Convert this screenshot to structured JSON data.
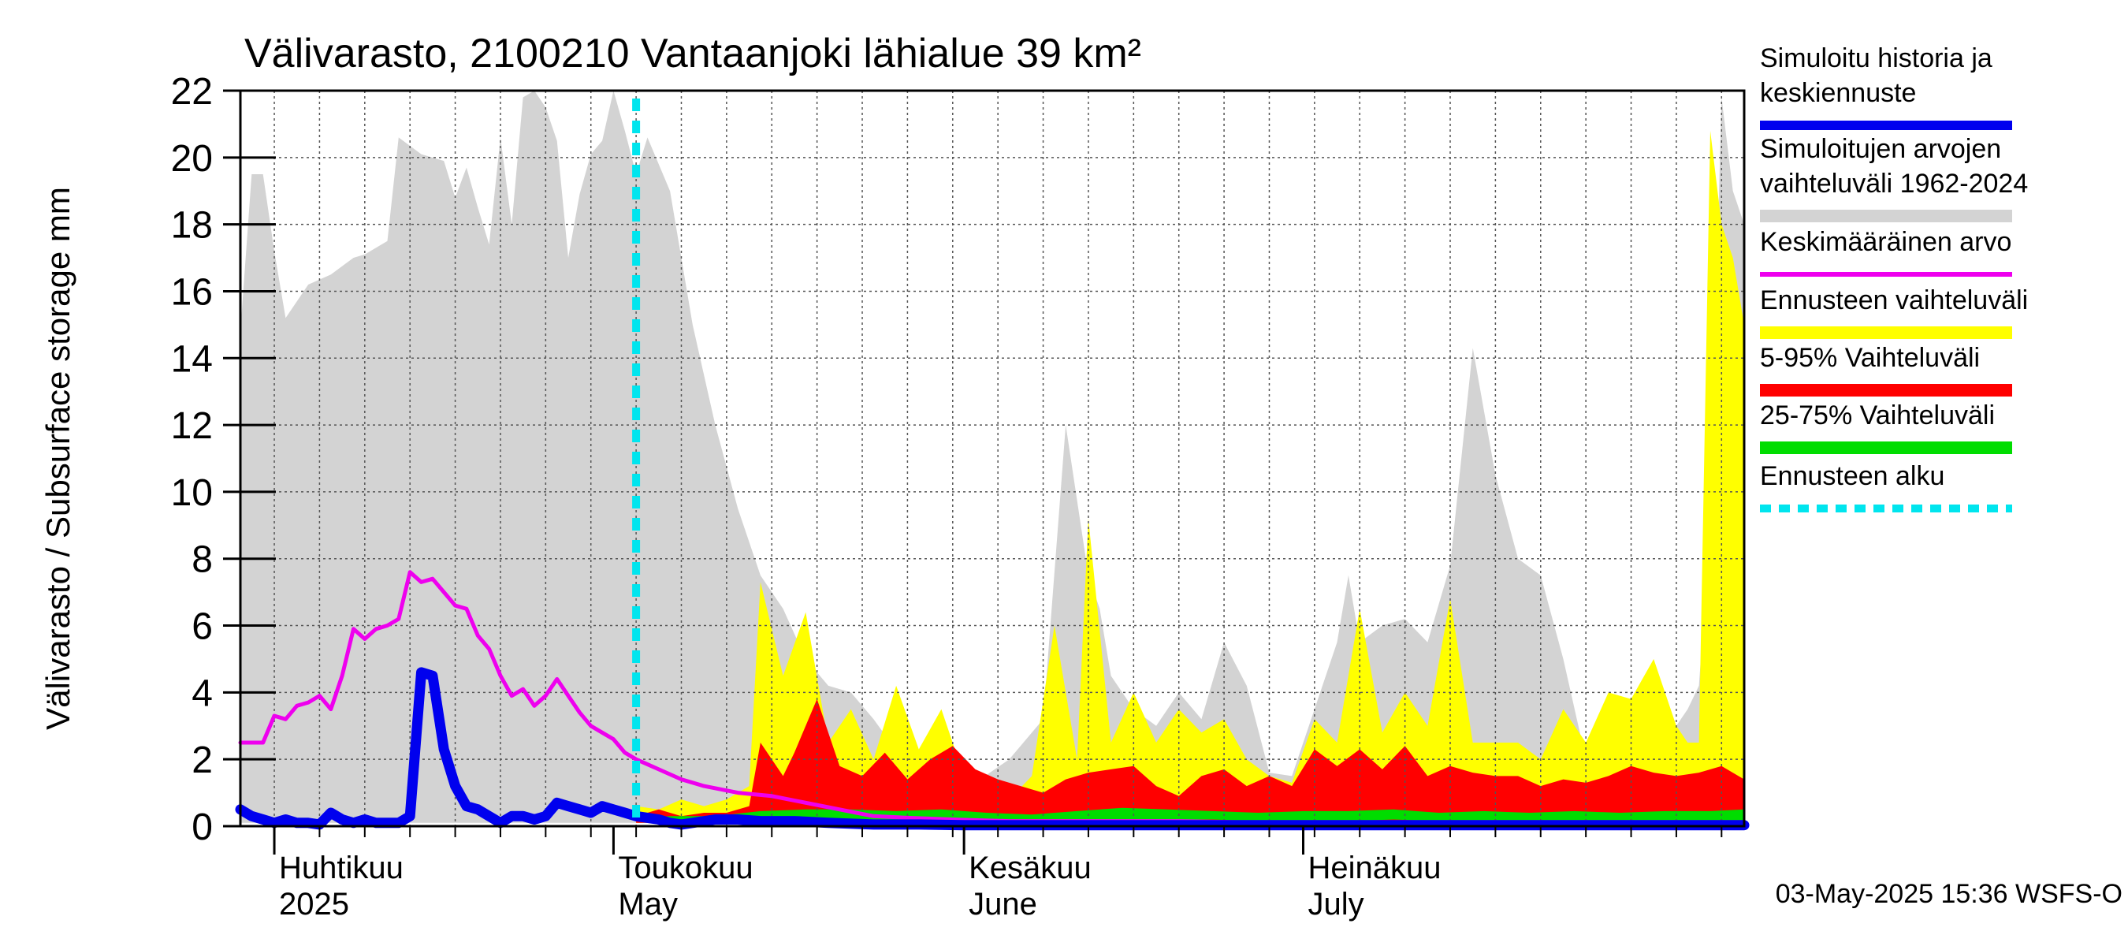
{
  "chart_data": {
    "type": "area",
    "title": "Välivarasto, 2100210 Vantaanjoki lähialue 39 km²",
    "ylabel": "Välivarasto / Subsurface storage  mm",
    "ylim": [
      0,
      22
    ],
    "yticks": [
      0,
      2,
      4,
      6,
      8,
      10,
      12,
      14,
      16,
      18,
      20,
      22
    ],
    "xlim": [
      "2025-03-29",
      "2025-08-09"
    ],
    "grid": true,
    "legend_position": "right",
    "timestamp": "03-May-2025 15:36 WSFS-O",
    "month_labels": [
      {
        "date": "2025-04-01",
        "fi": "Huhtikuu",
        "en": "2025"
      },
      {
        "date": "2025-05-01",
        "fi": "Toukokuu",
        "en": "May"
      },
      {
        "date": "2025-06-01",
        "fi": "Kesäkuu",
        "en": "June"
      },
      {
        "date": "2025-07-01",
        "fi": "Heinäkuu",
        "en": "July"
      }
    ],
    "forecast_start": "2025-05-03",
    "legend": [
      {
        "label": "Simuloitu historia ja keskiennuste",
        "color": "#0000ee",
        "style": "thick"
      },
      {
        "label": "Simuloitujen arvojen vaihteluväli 1962-2024",
        "color": "#d3d3d3",
        "style": "band"
      },
      {
        "label": "Keskimääräinen arvo",
        "color": "#ee00ee",
        "style": "line"
      },
      {
        "label": "Ennusteen vaihteluväli",
        "color": "#ffff00",
        "style": "band"
      },
      {
        "label": "5-95% Vaihteluväli",
        "color": "#ff0000",
        "style": "band"
      },
      {
        "label": "25-75% Vaihteluväli",
        "color": "#00dd00",
        "style": "band"
      },
      {
        "label": "Ennusteen alku",
        "color": "#00e5ee",
        "style": "dashed"
      }
    ],
    "series": [
      {
        "name": "Simuloitujen arvojen vaihteluväli 1962-2024",
        "kind": "band",
        "x": [
          "2025-03-29",
          "2025-03-30",
          "2025-03-31",
          "2025-04-01",
          "2025-04-02",
          "2025-04-04",
          "2025-04-06",
          "2025-04-08",
          "2025-04-09",
          "2025-04-11",
          "2025-04-12",
          "2025-04-14",
          "2025-04-16",
          "2025-04-17",
          "2025-04-18",
          "2025-04-19",
          "2025-04-20",
          "2025-04-21",
          "2025-04-22",
          "2025-04-23",
          "2025-04-24",
          "2025-04-25",
          "2025-04-26",
          "2025-04-27",
          "2025-04-28",
          "2025-04-29",
          "2025-04-30",
          "2025-05-01",
          "2025-05-02",
          "2025-05-03",
          "2025-05-04",
          "2025-05-06",
          "2025-05-08",
          "2025-05-10",
          "2025-05-12",
          "2025-05-14",
          "2025-05-16",
          "2025-05-18",
          "2025-05-20",
          "2025-05-22",
          "2025-05-24",
          "2025-05-27",
          "2025-05-30",
          "2025-06-02",
          "2025-06-05",
          "2025-06-08",
          "2025-06-10",
          "2025-06-12",
          "2025-06-13",
          "2025-06-14",
          "2025-06-16",
          "2025-06-18",
          "2025-06-20",
          "2025-06-22",
          "2025-06-24",
          "2025-06-26",
          "2025-06-28",
          "2025-06-30",
          "2025-07-02",
          "2025-07-04",
          "2025-07-05",
          "2025-07-06",
          "2025-07-08",
          "2025-07-10",
          "2025-07-12",
          "2025-07-14",
          "2025-07-16",
          "2025-07-18",
          "2025-07-20",
          "2025-07-22",
          "2025-07-24",
          "2025-07-26",
          "2025-07-28",
          "2025-07-30",
          "2025-08-01",
          "2025-08-03",
          "2025-08-04",
          "2025-08-05",
          "2025-08-06",
          "2025-08-07",
          "2025-08-08",
          "2025-08-09"
        ],
        "high": [
          14.8,
          19.5,
          19.5,
          17.2,
          15.2,
          16.2,
          16.5,
          17.0,
          17.1,
          17.5,
          20.6,
          20.1,
          19.9,
          18.8,
          19.7,
          18.5,
          17.4,
          20.6,
          18.0,
          21.8,
          22.0,
          21.5,
          20.5,
          17.0,
          18.9,
          20.1,
          20.5,
          22.0,
          20.8,
          19.5,
          20.6,
          19.0,
          15.0,
          12.0,
          9.5,
          7.5,
          6.5,
          5.0,
          4.2,
          4.0,
          3.2,
          1.8,
          1.3,
          1.3,
          2.0,
          3.2,
          12.0,
          7.5,
          6.5,
          4.5,
          3.5,
          3.0,
          4.0,
          3.2,
          5.5,
          4.2,
          1.6,
          1.5,
          3.5,
          5.5,
          7.5,
          5.5,
          6.0,
          6.2,
          5.5,
          7.8,
          14.3,
          10.5,
          8.0,
          7.5,
          5.0,
          2.0,
          2.0,
          3.5,
          4.0,
          3.0,
          3.5,
          4.2,
          9.0,
          21.8,
          19.0,
          18.0
        ],
        "low": [
          0.1,
          0.1,
          0.1,
          0.1,
          0.1,
          0.1,
          0.1,
          0.1,
          0.1,
          0.1,
          0.1,
          0.1,
          0.1,
          0.1,
          0.1,
          0.1,
          0.1,
          0.1,
          0.1,
          0.1,
          0.1,
          0.1,
          0.1,
          0.1,
          0.1,
          0.1,
          0.1,
          0.1,
          0.1,
          0.1,
          0.1,
          0.1,
          0.1,
          0.1,
          0.1,
          0.1,
          0.1,
          0.1,
          0.1,
          0.1,
          0.1,
          0.1,
          0.1,
          0.1,
          0.1,
          0.1,
          0.1,
          0.1,
          0.1,
          0.1,
          0.1,
          0.1,
          0.1,
          0.1,
          0.1,
          0.1,
          0.1,
          0.1,
          0.1,
          0.1,
          0.1,
          0.1,
          0.1,
          0.1,
          0.1,
          0.1,
          0.1,
          0.1,
          0.1,
          0.1,
          0.1,
          0.1,
          0.1,
          0.1,
          0.1,
          0.1,
          0.1,
          0.1,
          0.1,
          0.1,
          0.1,
          0.1
        ]
      },
      {
        "name": "Ennusteen vaihteluväli",
        "kind": "band",
        "x": [
          "2025-05-03",
          "2025-05-05",
          "2025-05-07",
          "2025-05-09",
          "2025-05-11",
          "2025-05-13",
          "2025-05-14",
          "2025-05-16",
          "2025-05-18",
          "2025-05-20",
          "2025-05-22",
          "2025-05-24",
          "2025-05-26",
          "2025-05-28",
          "2025-05-30",
          "2025-06-01",
          "2025-06-03",
          "2025-06-05",
          "2025-06-07",
          "2025-06-09",
          "2025-06-11",
          "2025-06-12",
          "2025-06-14",
          "2025-06-16",
          "2025-06-18",
          "2025-06-20",
          "2025-06-22",
          "2025-06-24",
          "2025-06-26",
          "2025-06-28",
          "2025-06-30",
          "2025-07-02",
          "2025-07-04",
          "2025-07-06",
          "2025-07-08",
          "2025-07-10",
          "2025-07-12",
          "2025-07-14",
          "2025-07-16",
          "2025-07-18",
          "2025-07-20",
          "2025-07-22",
          "2025-07-24",
          "2025-07-26",
          "2025-07-28",
          "2025-07-30",
          "2025-08-01",
          "2025-08-03",
          "2025-08-04",
          "2025-08-05",
          "2025-08-06",
          "2025-08-07",
          "2025-08-08",
          "2025-08-09"
        ],
        "high": [
          0.6,
          0.5,
          0.8,
          0.6,
          0.8,
          1.2,
          7.3,
          4.5,
          6.4,
          2.5,
          3.5,
          2.0,
          4.2,
          2.3,
          3.5,
          1.5,
          1.0,
          0.8,
          1.5,
          6.0,
          2.0,
          9.2,
          2.5,
          4.0,
          2.5,
          3.5,
          2.8,
          3.2,
          2.0,
          1.5,
          1.3,
          3.2,
          2.5,
          6.5,
          2.8,
          4.0,
          3.0,
          6.8,
          2.5,
          2.5,
          2.5,
          2.0,
          3.5,
          2.5,
          4.0,
          3.8,
          5.0,
          3.0,
          2.5,
          2.5,
          20.8,
          18.0,
          17.0,
          15.0
        ],
        "low": [
          0.1,
          0.1,
          0.1,
          0.1,
          0.1,
          0.1,
          0.1,
          0.1,
          0.1,
          0.1,
          0.1,
          0.1,
          0.1,
          0.1,
          0.1,
          0.1,
          0.1,
          0.1,
          0.1,
          0.1,
          0.1,
          0.1,
          0.1,
          0.1,
          0.1,
          0.1,
          0.1,
          0.1,
          0.1,
          0.1,
          0.1,
          0.1,
          0.1,
          0.1,
          0.1,
          0.1,
          0.1,
          0.1,
          0.1,
          0.1,
          0.1,
          0.1,
          0.1,
          0.1,
          0.1,
          0.1,
          0.1,
          0.1,
          0.1,
          0.1,
          0.1,
          0.1,
          0.1,
          0.1
        ]
      },
      {
        "name": "5-95% Vaihteluväli",
        "kind": "band",
        "x": [
          "2025-05-03",
          "2025-05-05",
          "2025-05-07",
          "2025-05-09",
          "2025-05-11",
          "2025-05-13",
          "2025-05-14",
          "2025-05-16",
          "2025-05-17",
          "2025-05-19",
          "2025-05-21",
          "2025-05-23",
          "2025-05-25",
          "2025-05-27",
          "2025-05-29",
          "2025-05-31",
          "2025-06-02",
          "2025-06-04",
          "2025-06-06",
          "2025-06-08",
          "2025-06-10",
          "2025-06-12",
          "2025-06-14",
          "2025-06-16",
          "2025-06-18",
          "2025-06-20",
          "2025-06-22",
          "2025-06-24",
          "2025-06-26",
          "2025-06-28",
          "2025-06-30",
          "2025-07-02",
          "2025-07-04",
          "2025-07-06",
          "2025-07-08",
          "2025-07-10",
          "2025-07-12",
          "2025-07-14",
          "2025-07-16",
          "2025-07-18",
          "2025-07-20",
          "2025-07-22",
          "2025-07-24",
          "2025-07-26",
          "2025-07-28",
          "2025-07-30",
          "2025-08-01",
          "2025-08-03",
          "2025-08-05",
          "2025-08-07",
          "2025-08-09"
        ],
        "high": [
          0.3,
          0.5,
          0.3,
          0.4,
          0.4,
          0.6,
          2.5,
          1.5,
          2.2,
          3.8,
          1.8,
          1.5,
          2.2,
          1.4,
          2.0,
          2.4,
          1.7,
          1.4,
          1.2,
          1.0,
          1.4,
          1.6,
          1.7,
          1.8,
          1.2,
          0.9,
          1.5,
          1.7,
          1.2,
          1.5,
          1.2,
          2.3,
          1.8,
          2.3,
          1.7,
          2.4,
          1.5,
          1.8,
          1.6,
          1.5,
          1.5,
          1.2,
          1.4,
          1.3,
          1.5,
          1.8,
          1.6,
          1.5,
          1.6,
          1.8,
          1.4
        ],
        "low": [
          0.1,
          0.1,
          0.1,
          0.1,
          0.1,
          0.1,
          0.1,
          0.1,
          0.1,
          0.1,
          0.1,
          0.1,
          0.1,
          0.1,
          0.1,
          0.1,
          0.1,
          0.1,
          0.1,
          0.1,
          0.1,
          0.1,
          0.1,
          0.1,
          0.1,
          0.1,
          0.1,
          0.1,
          0.1,
          0.1,
          0.1,
          0.1,
          0.1,
          0.1,
          0.1,
          0.1,
          0.1,
          0.1,
          0.1,
          0.1,
          0.1,
          0.1,
          0.1,
          0.1,
          0.1,
          0.1,
          0.1,
          0.1,
          0.1,
          0.1,
          0.1
        ]
      },
      {
        "name": "25-75% Vaihteluväli",
        "kind": "band",
        "x": [
          "2025-05-03",
          "2025-05-06",
          "2025-05-10",
          "2025-05-14",
          "2025-05-18",
          "2025-05-22",
          "2025-05-26",
          "2025-05-30",
          "2025-06-03",
          "2025-06-07",
          "2025-06-11",
          "2025-06-15",
          "2025-06-19",
          "2025-06-23",
          "2025-06-27",
          "2025-07-01",
          "2025-07-05",
          "2025-07-09",
          "2025-07-13",
          "2025-07-17",
          "2025-07-21",
          "2025-07-25",
          "2025-07-29",
          "2025-08-02",
          "2025-08-06",
          "2025-08-09"
        ],
        "high": [
          0.25,
          0.3,
          0.3,
          0.45,
          0.5,
          0.5,
          0.45,
          0.5,
          0.4,
          0.35,
          0.45,
          0.55,
          0.5,
          0.45,
          0.4,
          0.45,
          0.45,
          0.5,
          0.4,
          0.45,
          0.4,
          0.45,
          0.4,
          0.45,
          0.45,
          0.5
        ],
        "low": [
          0.15,
          0.15,
          0.15,
          0.2,
          0.2,
          0.2,
          0.2,
          0.2,
          0.15,
          0.15,
          0.15,
          0.2,
          0.2,
          0.2,
          0.15,
          0.15,
          0.15,
          0.2,
          0.15,
          0.15,
          0.15,
          0.15,
          0.15,
          0.15,
          0.15,
          0.15
        ]
      },
      {
        "name": "Keskimääräinen arvo",
        "kind": "line",
        "x": [
          "2025-03-29",
          "2025-03-31",
          "2025-04-01",
          "2025-04-02",
          "2025-04-03",
          "2025-04-04",
          "2025-04-05",
          "2025-04-06",
          "2025-04-07",
          "2025-04-08",
          "2025-04-09",
          "2025-04-10",
          "2025-04-11",
          "2025-04-12",
          "2025-04-13",
          "2025-04-14",
          "2025-04-15",
          "2025-04-16",
          "2025-04-17",
          "2025-04-18",
          "2025-04-19",
          "2025-04-20",
          "2025-04-21",
          "2025-04-22",
          "2025-04-23",
          "2025-04-24",
          "2025-04-25",
          "2025-04-26",
          "2025-04-27",
          "2025-04-28",
          "2025-04-29",
          "2025-04-30",
          "2025-05-01",
          "2025-05-02",
          "2025-05-03",
          "2025-05-05",
          "2025-05-07",
          "2025-05-09",
          "2025-05-12",
          "2025-05-15",
          "2025-05-18",
          "2025-05-21",
          "2025-05-24",
          "2025-05-27",
          "2025-05-31",
          "2025-06-05",
          "2025-06-10",
          "2025-06-15",
          "2025-06-20",
          "2025-06-25",
          "2025-06-30",
          "2025-07-05",
          "2025-07-10",
          "2025-07-15",
          "2025-07-20",
          "2025-07-25",
          "2025-07-30",
          "2025-08-04",
          "2025-08-09"
        ],
        "values": [
          2.5,
          2.5,
          3.3,
          3.2,
          3.6,
          3.7,
          3.9,
          3.5,
          4.5,
          5.9,
          5.6,
          5.9,
          6.0,
          6.2,
          7.6,
          7.3,
          7.4,
          7.0,
          6.6,
          6.5,
          5.7,
          5.3,
          4.5,
          3.9,
          4.1,
          3.6,
          3.9,
          4.4,
          3.9,
          3.4,
          3.0,
          2.8,
          2.6,
          2.2,
          2.0,
          1.7,
          1.4,
          1.2,
          1.0,
          0.9,
          0.7,
          0.5,
          0.3,
          0.25,
          0.2,
          0.15,
          0.15,
          0.15,
          0.15,
          0.12,
          0.12,
          0.12,
          0.12,
          0.12,
          0.12,
          0.12,
          0.12,
          0.12,
          0.12
        ]
      },
      {
        "name": "Simuloitu historia ja keskiennuste",
        "kind": "line",
        "x": [
          "2025-03-29",
          "2025-03-30",
          "2025-03-31",
          "2025-04-01",
          "2025-04-02",
          "2025-04-03",
          "2025-04-04",
          "2025-04-05",
          "2025-04-06",
          "2025-04-07",
          "2025-04-08",
          "2025-04-09",
          "2025-04-10",
          "2025-04-11",
          "2025-04-12",
          "2025-04-13",
          "2025-04-14",
          "2025-04-15",
          "2025-04-16",
          "2025-04-17",
          "2025-04-18",
          "2025-04-19",
          "2025-04-20",
          "2025-04-21",
          "2025-04-22",
          "2025-04-23",
          "2025-04-24",
          "2025-04-25",
          "2025-04-26",
          "2025-04-27",
          "2025-04-28",
          "2025-04-29",
          "2025-04-30",
          "2025-05-01",
          "2025-05-02",
          "2025-05-03",
          "2025-05-04",
          "2025-05-05",
          "2025-05-06",
          "2025-05-07",
          "2025-05-08",
          "2025-05-10",
          "2025-05-12",
          "2025-05-14",
          "2025-05-17",
          "2025-05-20",
          "2025-05-24",
          "2025-05-28",
          "2025-06-01",
          "2025-06-05",
          "2025-06-10",
          "2025-06-15",
          "2025-06-20",
          "2025-06-25",
          "2025-06-30",
          "2025-07-05",
          "2025-07-10",
          "2025-07-15",
          "2025-07-20",
          "2025-07-25",
          "2025-07-30",
          "2025-08-04",
          "2025-08-09"
        ],
        "values": [
          0.5,
          0.3,
          0.2,
          0.1,
          0.2,
          0.1,
          0.1,
          0.05,
          0.4,
          0.2,
          0.1,
          0.2,
          0.1,
          0.1,
          0.1,
          0.3,
          4.6,
          4.5,
          2.3,
          1.2,
          0.6,
          0.5,
          0.3,
          0.1,
          0.3,
          0.3,
          0.2,
          0.3,
          0.7,
          0.6,
          0.5,
          0.4,
          0.6,
          0.5,
          0.4,
          0.3,
          0.25,
          0.2,
          0.1,
          0.05,
          0.1,
          0.2,
          0.2,
          0.15,
          0.15,
          0.1,
          0.05,
          0.05,
          0.03,
          0.03,
          0.03,
          0.03,
          0.03,
          0.03,
          0.03,
          0.03,
          0.03,
          0.03,
          0.03,
          0.03,
          0.03,
          0.03,
          0.03
        ]
      }
    ]
  }
}
